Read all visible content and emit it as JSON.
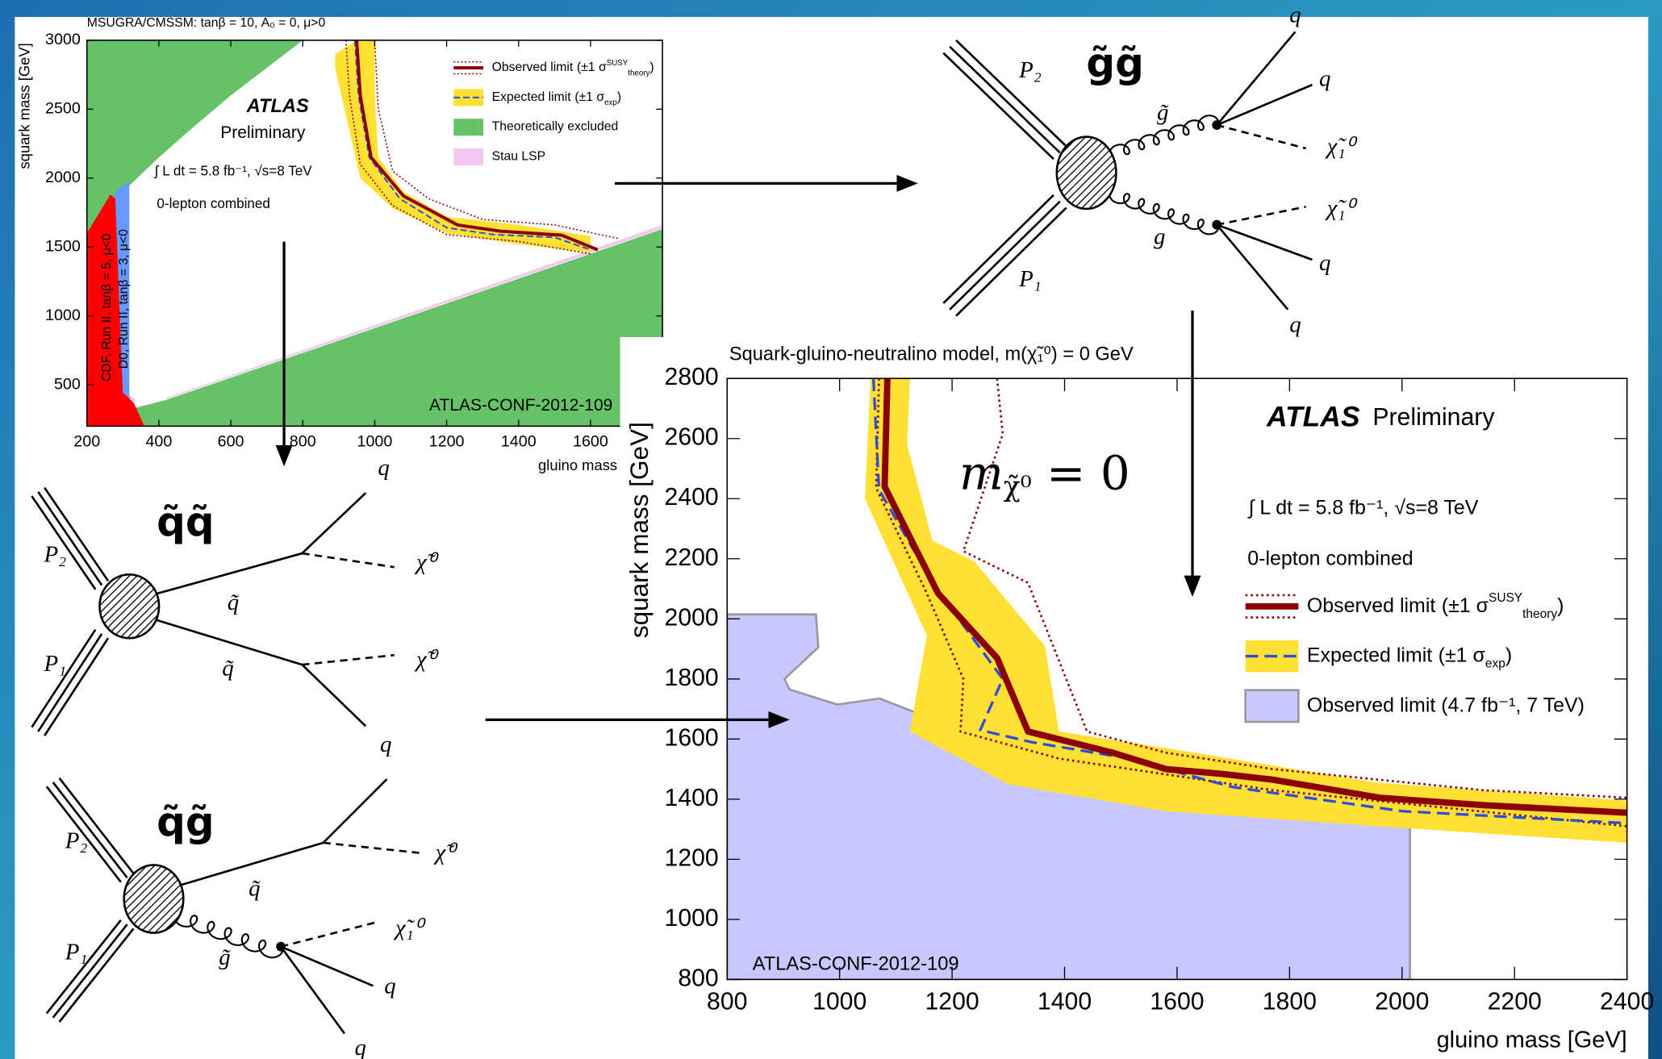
{
  "chart_data": [
    {
      "type": "line",
      "header": "MSUGRA/CMSSM: tanβ = 10, A₀ = 0, μ>0",
      "experiment": "ATLAS",
      "status": "Preliminary",
      "luminosity": "∫ L dt = 5.8 fb⁻¹, √s=8 TeV",
      "selection": "0-lepton combined",
      "reference": "ATLAS-CONF-2012-109",
      "x_label": "gluino mass [GeV]",
      "y_label": "squark mass [GeV]",
      "xlim": [
        200,
        1800
      ],
      "ylim": [
        200,
        3000
      ],
      "xticks": [
        200,
        400,
        600,
        800,
        1000,
        1200,
        1400,
        1600
      ],
      "yticks": [
        500,
        1000,
        1500,
        2000,
        2500,
        3000
      ],
      "regions": [
        {
          "name": "Theoretically excluded",
          "color": "#66c266",
          "polygons": [
            {
              "x": [
                200,
                300,
                400,
                500,
                600,
                700,
                800,
                200
              ],
              "values": [
                1600,
                1900,
                2150,
                2380,
                2600,
                2800,
                3000,
                3000
              ]
            },
            {
              "x": [
                300,
                330,
                420,
                1800,
                1800,
                300
              ],
              "values": [
                200,
                330,
                390,
                1630,
                200,
                200
              ]
            }
          ]
        },
        {
          "name": "Stau LSP",
          "color": "#f5c6f0",
          "polygons": [
            {
              "x": [
                420,
                1800,
                1800,
                420
              ],
              "values": [
                395,
                1635,
                1660,
                405
              ]
            }
          ]
        },
        {
          "label": "CDF, Run II, tanβ = 5, μ<0",
          "color": "#ff0000",
          "polygons": [
            {
              "x": [
                200,
                265,
                290,
                300,
                330,
                360,
                200
              ],
              "values": [
                1600,
                1880,
                1830,
                450,
                370,
                200,
                200
              ]
            }
          ]
        },
        {
          "label": "D0, Run II, tanβ = 3, μ<0",
          "color": "#6699ff",
          "polygons": [
            {
              "x": [
                278,
                318,
                318,
                340,
                300
              ],
              "values": [
                1900,
                1980,
                420,
                370,
                440
              ]
            }
          ]
        }
      ],
      "series": [
        {
          "name": "Observed limit",
          "sigma": {
            "open": "(±1 σ",
            "sup": "SUSY",
            "sub": "theory",
            "close": ")"
          },
          "color": "#8b0000",
          "x": [
            950,
            960,
            990,
            1080,
            1230,
            1350,
            1520,
            1620
          ],
          "values": [
            3000,
            2600,
            2150,
            1870,
            1660,
            1615,
            1585,
            1480
          ],
          "theory_limits": [
            {
              "x": [
                1000,
                1010,
                1050,
                1150,
                1300,
                1500,
                1680
              ],
              "values": [
                3000,
                2500,
                2050,
                1850,
                1700,
                1660,
                1560
              ]
            },
            {
              "x": [
                920,
                930,
                960,
                1050,
                1200,
                1400,
                1600
              ],
              "values": [
                3000,
                2600,
                2100,
                1800,
                1590,
                1540,
                1450
              ]
            }
          ]
        },
        {
          "name": "Expected limit",
          "sigma": {
            "open": "(±1 σ",
            "sub": "exp",
            "close": ")"
          },
          "color": "#2b4fd8",
          "dashed": true,
          "x": [
            945,
            955,
            985,
            1070,
            1200,
            1330,
            1500,
            1600
          ],
          "values": [
            3000,
            2600,
            2150,
            1850,
            1640,
            1590,
            1570,
            1480
          ],
          "band": {
            "color": "#ffe033",
            "x": [
              890,
              960,
              1050,
              1200,
              1400,
              1600,
              1600,
              1400,
              1200,
              1080,
              1010,
              1000,
              1000,
              950,
              890
            ],
            "values": [
              2800,
              2000,
              1780,
              1600,
              1520,
              1460,
              1580,
              1660,
              1720,
              1900,
              2150,
              2600,
              3000,
              3000,
              2900
            ]
          }
        }
      ]
    },
    {
      "type": "line",
      "title": "Squark-gluino-neutralino model, m(χ̃₁⁰) = 0 GeV",
      "experiment": "ATLAS",
      "status": "Preliminary",
      "luminosity": "∫ L dt = 5.8 fb⁻¹, √s=8 TeV",
      "selection": "0-lepton combined",
      "reference": "ATLAS-CONF-2012-109",
      "annotation": [
        "m",
        "χ̃⁰",
        " = 0"
      ],
      "x_label": "gluino mass [GeV]",
      "y_label": "squark mass [GeV]",
      "xlim": [
        800,
        2400
      ],
      "ylim": [
        800,
        2800
      ],
      "xticks": [
        800,
        1000,
        1200,
        1400,
        1600,
        1800,
        2000,
        2200,
        2400
      ],
      "yticks": [
        800,
        1000,
        1200,
        1400,
        1600,
        1800,
        2000,
        2200,
        2400,
        2600,
        2800
      ],
      "regions": [
        {
          "name": "Observed limit (4.7 fb⁻¹, 7 TeV)",
          "color": "#c8c8ff",
          "edge": "#999999",
          "polygons": [
            {
              "x": [
                800,
                958,
                962,
                902,
                911,
                996,
                1071,
                1147,
                1222,
                1392,
                1580,
                1769,
                2014,
                2014,
                800
              ],
              "values": [
                2015,
                2015,
                1905,
                1800,
                1765,
                1715,
                1735,
                1680,
                1590,
                1500,
                1430,
                1395,
                1360,
                800,
                800
              ]
            }
          ]
        }
      ],
      "series": [
        {
          "name": "Observed limit",
          "sigma": {
            "open": "(±1 σ",
            "sup": "SUSY",
            "sub": "theory",
            "close": ")"
          },
          "color": "#8b0000",
          "x": [
            1085,
            1080,
            1175,
            1280,
            1335,
            1485,
            1580,
            1675,
            1770,
            1960,
            2145,
            2400
          ],
          "values": [
            2800,
            2440,
            2085,
            1870,
            1625,
            1555,
            1500,
            1485,
            1465,
            1405,
            1380,
            1355
          ],
          "theory_limits": [
            {
              "x": [
                1280,
                1290,
                1220,
                1335,
                1440,
                1580,
                1770,
                2145,
                2400
              ],
              "values": [
                2800,
                2615,
                2225,
                2120,
                1625,
                1555,
                1500,
                1430,
                1405
              ]
            },
            {
              "x": [
                1070,
                1065,
                1155,
                1220,
                1215,
                1390,
                1770,
                2400
              ],
              "values": [
                2800,
                2435,
                2085,
                1800,
                1625,
                1535,
                1430,
                1310
              ]
            }
          ]
        },
        {
          "name": "Expected limit",
          "sigma": {
            "open": "(±1 σ",
            "sub": "exp",
            "close": ")"
          },
          "color": "#2b4fd8",
          "dashed": true,
          "x": [
            1060,
            1070,
            1165,
            1290,
            1250,
            1340,
            1500,
            1700,
            2000,
            2400
          ],
          "values": [
            2800,
            2430,
            2120,
            1800,
            1630,
            1590,
            1540,
            1440,
            1360,
            1320
          ],
          "band": {
            "color": "#ffe033",
            "x": [
              1055,
              1125,
              1120,
              1165,
              1240,
              1365,
              1390,
              1580,
              1955,
              2400,
              2400,
              1955,
              1580,
              1300,
              1125,
              1155,
              1045
            ],
            "values": [
              2800,
              2800,
              2580,
              2260,
              2190,
              1910,
              1625,
              1570,
              1455,
              1395,
              1255,
              1310,
              1360,
              1450,
              1625,
              1945,
              2400
            ]
          }
        }
      ]
    }
  ],
  "diagrams": [
    {
      "title": "g̃g̃",
      "labels": [
        "P₂",
        "P₁",
        "g̃",
        "g",
        "χ̃₁⁰",
        "χ̃₁⁰",
        "q",
        "q",
        "q",
        "q"
      ]
    },
    {
      "title": "q̃q̃",
      "labels": [
        "P₂",
        "P₁",
        "q̃",
        "q̃",
        "χ̃⁰",
        "χ̃⁰",
        "q",
        "q"
      ]
    },
    {
      "title": "q̃g̃",
      "labels": [
        "P₂",
        "P₁",
        "q̃",
        "g̃",
        "χ̃⁰",
        "χ̃₁⁰",
        "q",
        "q"
      ]
    }
  ]
}
